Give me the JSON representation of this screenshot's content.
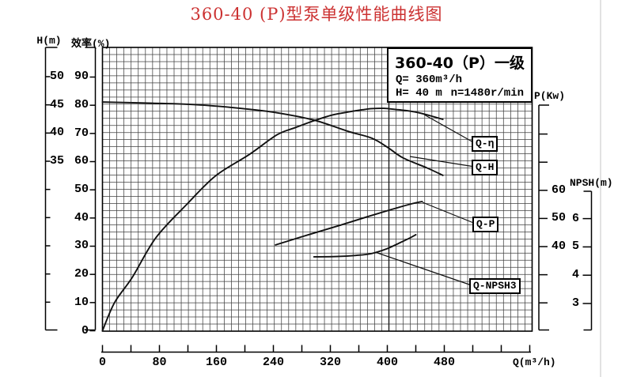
{
  "title": "360-40 (P)型泵单级性能曲线图",
  "colors": {
    "title_red": "#cc3232",
    "curve": "#111111",
    "grid_line": "#404040",
    "frame": "#000000"
  },
  "legend": {
    "title": "360-40（P）一级",
    "flow": "Q= 360m³/h",
    "head": "H= 40 m",
    "speed": "n=1480r/min"
  },
  "curve_labels": {
    "eta": "Q-η",
    "head": "Q-H",
    "power": "Q-P",
    "npsh": "Q-NPSH3"
  },
  "axes": {
    "head": {
      "title": "H(m)",
      "tick_values": [
        50,
        45,
        40,
        35,
        30,
        25,
        20,
        15,
        10
      ],
      "labeled": [
        50,
        45,
        40,
        35
      ]
    },
    "efficiency": {
      "title": "效率(%)",
      "tick_values": [
        90,
        80,
        70,
        60,
        50,
        40,
        30,
        20,
        10,
        0
      ],
      "labeled": [
        90,
        80,
        70,
        60,
        50,
        40,
        30,
        20,
        10,
        0
      ]
    },
    "power": {
      "title": "P(Kw)",
      "tick_values": [
        80,
        70,
        60,
        50,
        40,
        30,
        20
      ],
      "labeled": [
        60,
        50,
        40
      ]
    },
    "npsh": {
      "title": "NPSH(m)",
      "tick_values": [
        6,
        5,
        4,
        3
      ],
      "labeled": [
        6,
        5,
        4,
        3
      ]
    },
    "flow": {
      "title": "Q(m³/h)",
      "tick_values": [
        0,
        40,
        80,
        120,
        160,
        200,
        240,
        280,
        320,
        360,
        400,
        440,
        480,
        520,
        560,
        600
      ],
      "labeled": [
        0,
        80,
        160,
        240,
        320,
        400,
        480
      ]
    }
  },
  "chart_data": {
    "type": "line",
    "title": "360-40 (P)型泵单级性能曲线图",
    "xlabel": "Q(m³/h)",
    "x_range": [
      0,
      600
    ],
    "grid": true,
    "legend_panel": {
      "model": "360-40（P）一级",
      "Q": "360m³/h",
      "H": "40 m",
      "n": "1480r/min"
    },
    "series": [
      {
        "name": "Q-H",
        "axis": "head",
        "unit": "m",
        "points": [
          [
            0,
            45.5
          ],
          [
            70,
            45.3
          ],
          [
            135,
            45.0
          ],
          [
            200,
            44.3
          ],
          [
            245,
            43.6
          ],
          [
            297,
            42.3
          ],
          [
            345,
            40.3
          ],
          [
            378,
            39.1
          ],
          [
            400,
            37.5
          ],
          [
            422,
            35.6
          ],
          [
            456,
            33.8
          ],
          [
            478,
            32.5
          ]
        ]
      },
      {
        "name": "Q-η",
        "axis": "efficiency",
        "unit": "%",
        "points": [
          [
            0,
            0
          ],
          [
            17,
            10
          ],
          [
            42,
            19
          ],
          [
            75,
            33
          ],
          [
            119,
            45
          ],
          [
            159,
            55
          ],
          [
            206,
            62.5
          ],
          [
            245,
            69.5
          ],
          [
            270,
            72
          ],
          [
            297,
            74.5
          ],
          [
            322,
            76.5
          ],
          [
            345,
            77.6
          ],
          [
            365,
            78.4
          ],
          [
            378,
            78.8
          ],
          [
            395,
            78.9
          ],
          [
            412,
            78.5
          ],
          [
            430,
            78.0
          ],
          [
            445,
            77.3
          ],
          [
            460,
            76.3
          ],
          [
            478,
            75.0
          ]
        ]
      },
      {
        "name": "Q-P",
        "axis": "power",
        "unit": "Kw",
        "points": [
          [
            243,
            40.6
          ],
          [
            289,
            44.2
          ],
          [
            334,
            47.6
          ],
          [
            373,
            50.7
          ],
          [
            406,
            53.2
          ],
          [
            434,
            55.2
          ],
          [
            449,
            56.0
          ]
        ]
      },
      {
        "name": "Q-NPSH3",
        "axis": "npsh",
        "unit": "m",
        "points": [
          [
            297,
            4.65
          ],
          [
            328,
            4.66
          ],
          [
            356,
            4.7
          ],
          [
            377,
            4.76
          ],
          [
            399,
            4.93
          ],
          [
            418,
            5.15
          ],
          [
            432,
            5.32
          ],
          [
            440,
            5.43
          ]
        ]
      }
    ]
  }
}
